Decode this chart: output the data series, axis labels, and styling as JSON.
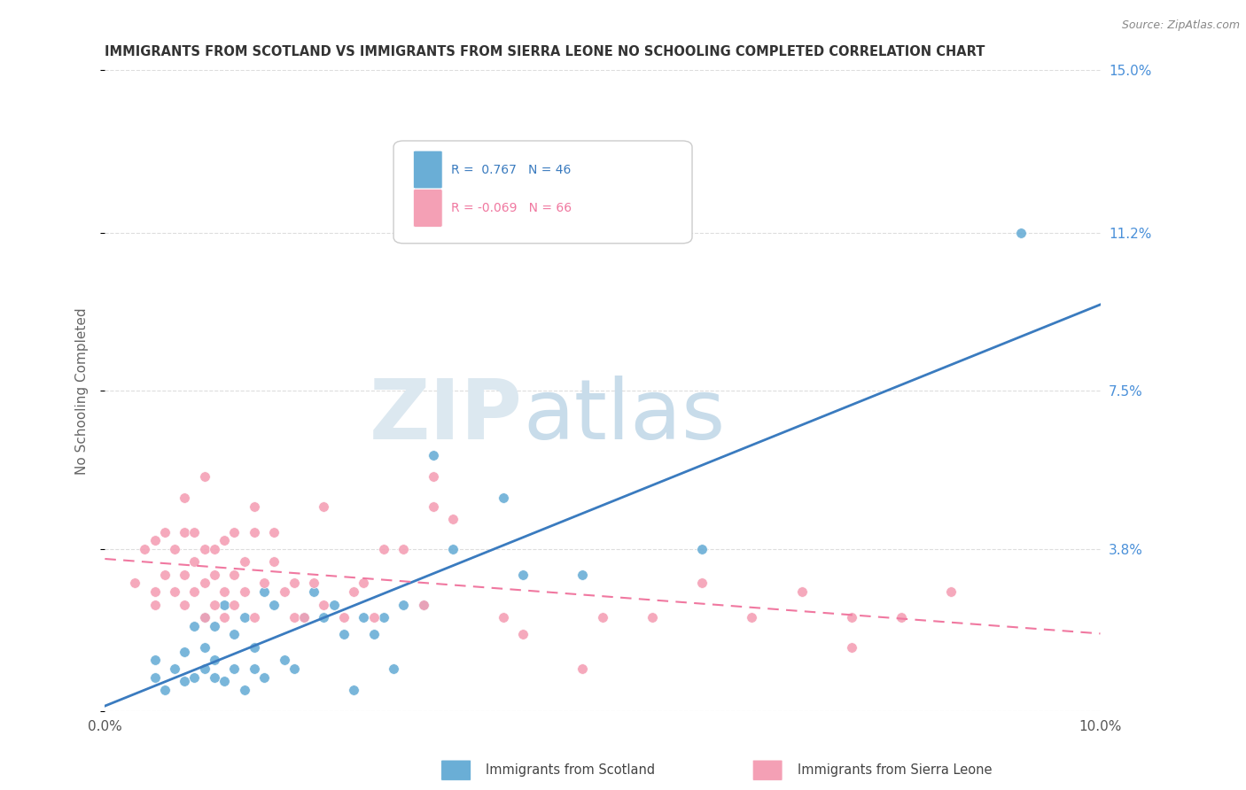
{
  "title": "IMMIGRANTS FROM SCOTLAND VS IMMIGRANTS FROM SIERRA LEONE NO SCHOOLING COMPLETED CORRELATION CHART",
  "source": "Source: ZipAtlas.com",
  "ylabel": "No Schooling Completed",
  "xlim": [
    0.0,
    0.1
  ],
  "ylim": [
    0.0,
    0.15
  ],
  "scotland_R": 0.767,
  "scotland_N": 46,
  "sierraleone_R": -0.069,
  "sierraleone_N": 66,
  "scotland_color": "#6aaed6",
  "sierraleone_color": "#f4a0b5",
  "scotland_line_color": "#3a7bbf",
  "sierraleone_line_color": "#f078a0",
  "background_color": "#ffffff",
  "grid_color": "#dddddd",
  "title_color": "#333333",
  "right_label_color": "#4a90d9",
  "yticks": [
    0.0,
    0.038,
    0.075,
    0.112,
    0.15
  ],
  "ytick_labels": [
    "",
    "3.8%",
    "7.5%",
    "11.2%",
    "15.0%"
  ],
  "scotland_points": [
    [
      0.005,
      0.008
    ],
    [
      0.005,
      0.012
    ],
    [
      0.006,
      0.005
    ],
    [
      0.007,
      0.01
    ],
    [
      0.008,
      0.007
    ],
    [
      0.008,
      0.014
    ],
    [
      0.009,
      0.008
    ],
    [
      0.009,
      0.02
    ],
    [
      0.01,
      0.01
    ],
    [
      0.01,
      0.015
    ],
    [
      0.01,
      0.022
    ],
    [
      0.011,
      0.008
    ],
    [
      0.011,
      0.012
    ],
    [
      0.011,
      0.02
    ],
    [
      0.012,
      0.007
    ],
    [
      0.012,
      0.025
    ],
    [
      0.013,
      0.01
    ],
    [
      0.013,
      0.018
    ],
    [
      0.014,
      0.005
    ],
    [
      0.014,
      0.022
    ],
    [
      0.015,
      0.01
    ],
    [
      0.015,
      0.015
    ],
    [
      0.016,
      0.008
    ],
    [
      0.016,
      0.028
    ],
    [
      0.017,
      0.025
    ],
    [
      0.018,
      0.012
    ],
    [
      0.019,
      0.01
    ],
    [
      0.02,
      0.022
    ],
    [
      0.021,
      0.028
    ],
    [
      0.022,
      0.022
    ],
    [
      0.023,
      0.025
    ],
    [
      0.024,
      0.018
    ],
    [
      0.025,
      0.005
    ],
    [
      0.026,
      0.022
    ],
    [
      0.027,
      0.018
    ],
    [
      0.028,
      0.022
    ],
    [
      0.029,
      0.01
    ],
    [
      0.03,
      0.025
    ],
    [
      0.032,
      0.025
    ],
    [
      0.033,
      0.06
    ],
    [
      0.035,
      0.038
    ],
    [
      0.04,
      0.05
    ],
    [
      0.042,
      0.032
    ],
    [
      0.048,
      0.032
    ],
    [
      0.06,
      0.038
    ],
    [
      0.092,
      0.112
    ]
  ],
  "sierraleone_points": [
    [
      0.003,
      0.03
    ],
    [
      0.004,
      0.038
    ],
    [
      0.005,
      0.028
    ],
    [
      0.005,
      0.04
    ],
    [
      0.005,
      0.025
    ],
    [
      0.006,
      0.032
    ],
    [
      0.006,
      0.042
    ],
    [
      0.007,
      0.028
    ],
    [
      0.007,
      0.038
    ],
    [
      0.008,
      0.025
    ],
    [
      0.008,
      0.032
    ],
    [
      0.008,
      0.042
    ],
    [
      0.008,
      0.05
    ],
    [
      0.009,
      0.028
    ],
    [
      0.009,
      0.035
    ],
    [
      0.009,
      0.042
    ],
    [
      0.01,
      0.022
    ],
    [
      0.01,
      0.03
    ],
    [
      0.01,
      0.038
    ],
    [
      0.01,
      0.055
    ],
    [
      0.011,
      0.025
    ],
    [
      0.011,
      0.032
    ],
    [
      0.011,
      0.038
    ],
    [
      0.012,
      0.022
    ],
    [
      0.012,
      0.028
    ],
    [
      0.012,
      0.04
    ],
    [
      0.013,
      0.025
    ],
    [
      0.013,
      0.032
    ],
    [
      0.013,
      0.042
    ],
    [
      0.014,
      0.028
    ],
    [
      0.014,
      0.035
    ],
    [
      0.015,
      0.022
    ],
    [
      0.015,
      0.042
    ],
    [
      0.015,
      0.048
    ],
    [
      0.016,
      0.03
    ],
    [
      0.017,
      0.035
    ],
    [
      0.017,
      0.042
    ],
    [
      0.018,
      0.028
    ],
    [
      0.019,
      0.022
    ],
    [
      0.019,
      0.03
    ],
    [
      0.02,
      0.022
    ],
    [
      0.021,
      0.03
    ],
    [
      0.022,
      0.025
    ],
    [
      0.022,
      0.048
    ],
    [
      0.024,
      0.022
    ],
    [
      0.025,
      0.028
    ],
    [
      0.026,
      0.03
    ],
    [
      0.027,
      0.022
    ],
    [
      0.028,
      0.038
    ],
    [
      0.03,
      0.038
    ],
    [
      0.032,
      0.025
    ],
    [
      0.033,
      0.055
    ],
    [
      0.033,
      0.048
    ],
    [
      0.035,
      0.045
    ],
    [
      0.04,
      0.022
    ],
    [
      0.042,
      0.018
    ],
    [
      0.048,
      0.01
    ],
    [
      0.05,
      0.022
    ],
    [
      0.055,
      0.022
    ],
    [
      0.06,
      0.03
    ],
    [
      0.065,
      0.022
    ],
    [
      0.07,
      0.028
    ],
    [
      0.075,
      0.015
    ],
    [
      0.075,
      0.022
    ],
    [
      0.08,
      0.022
    ],
    [
      0.085,
      0.028
    ]
  ]
}
